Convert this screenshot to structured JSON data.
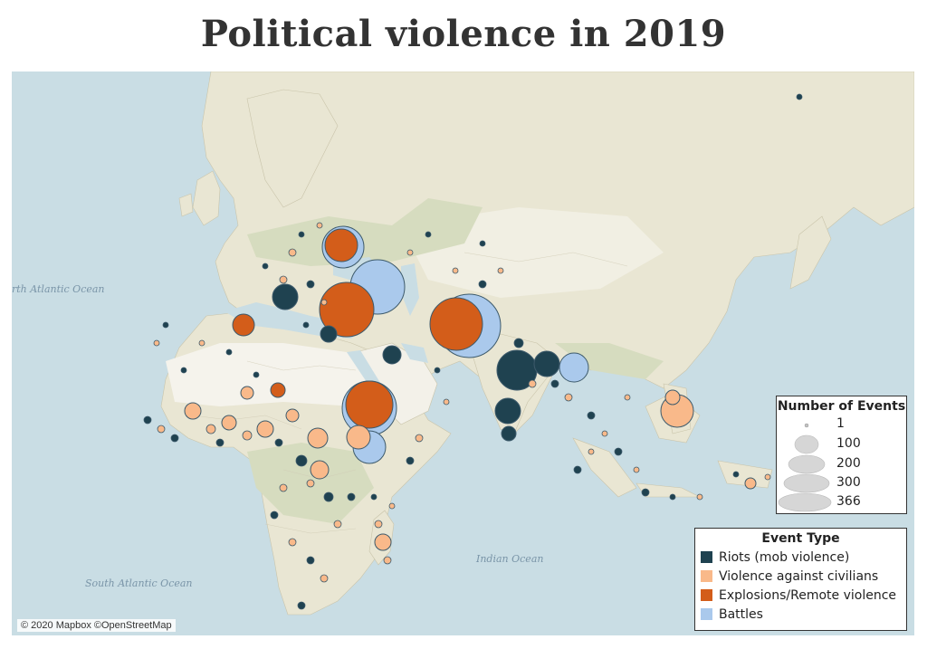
{
  "title": "Political violence in 2019",
  "attribution": "© 2020 Mapbox ©OpenStreetMap",
  "ocean_labels": {
    "north_atlantic": "rth Atlantic Ocean",
    "south_atlantic": "South Atlantic Ocean",
    "indian": "Indian Ocean"
  },
  "size_legend": {
    "title": "Number of Events",
    "entries": [
      "1",
      "100",
      "200",
      "300",
      "366"
    ]
  },
  "type_legend": {
    "title": "Event Type",
    "entries": [
      {
        "label": "Riots (mob violence)",
        "color": "#1f4250"
      },
      {
        "label": "Violence against civilians",
        "color": "#f9b98a"
      },
      {
        "label": "Explosions/Remote violence",
        "color": "#d35d1a"
      },
      {
        "label": "Battles",
        "color": "#aac9ec"
      }
    ]
  },
  "colors": {
    "ocean": "#c9dde4",
    "land": "#e9e6d3",
    "desert": "#f3f1e9",
    "forest": "#d6dcbf",
    "riots": "#1f4250",
    "civilians": "#f9b98a",
    "explosions": "#d35d1a",
    "battles": "#aac9ec"
  }
}
